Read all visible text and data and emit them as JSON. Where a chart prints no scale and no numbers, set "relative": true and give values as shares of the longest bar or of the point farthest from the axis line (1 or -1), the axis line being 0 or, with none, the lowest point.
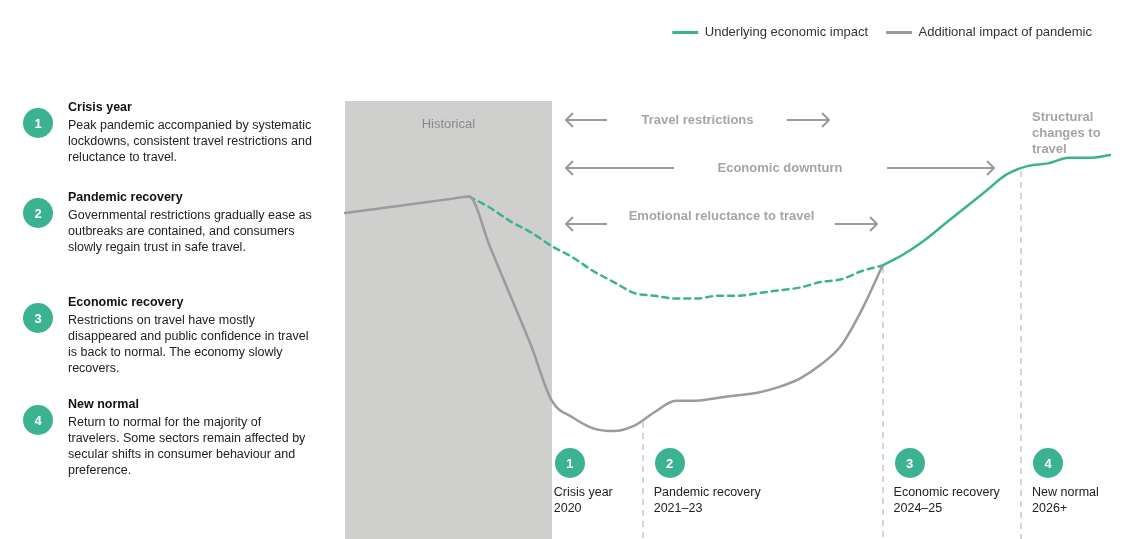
{
  "chart_data": {
    "type": "line",
    "relative": true,
    "legend": "top right",
    "marker": "none",
    "grid": false,
    "categories": [
      null,
      null,
      null,
      null,
      null,
      null,
      null,
      null,
      null,
      null,
      null,
      null,
      null,
      null,
      null,
      null,
      null,
      null,
      null,
      null,
      null,
      null,
      null,
      null,
      null,
      null,
      null,
      null,
      null,
      null,
      null,
      null,
      null,
      null,
      null,
      null,
      null,
      null
    ],
    "series": [
      {
        "name": "Underlying economic impact",
        "color": "#3bb291",
        "values": [
          null,
          null,
          null,
          null,
          null,
          null,
          null,
          null,
          null,
          null,
          null,
          null,
          null,
          null,
          null,
          null,
          null,
          null,
          null,
          null,
          null,
          null,
          null,
          null,
          null,
          null,
          0.6,
          0.64,
          0.69,
          0.75,
          0.81,
          0.87,
          0.93,
          0.96,
          0.97,
          0.99,
          0.99,
          1
        ]
      },
      {
        "name": "Additional impact of pandemic",
        "color": "#9b9b9b",
        "values": [
          0.79,
          0.8,
          0.81,
          0.82,
          0.83,
          0.84,
          0.85,
          0.67,
          0.49,
          0.31,
          0.11,
          0.05,
          0.01,
          0,
          0.02,
          0.07,
          0.11,
          0.11,
          0.12,
          0.13,
          0.14,
          0.16,
          0.19,
          0.24,
          0.31,
          0.44,
          0.6,
          null,
          null,
          null,
          null,
          null,
          null,
          null,
          null,
          null,
          null,
          null
        ]
      },
      {
        "color": "#3bb291",
        "line_style": "dashed",
        "values": [
          null,
          null,
          null,
          null,
          null,
          null,
          0.85,
          0.81,
          0.76,
          0.72,
          0.67,
          0.63,
          0.58,
          0.54,
          0.5,
          0.49,
          0.48,
          0.48,
          0.49,
          0.49,
          0.5,
          0.51,
          0.52,
          0.54,
          0.55,
          0.58,
          0.6,
          null,
          null,
          null,
          null,
          null,
          null,
          null,
          null,
          null,
          null,
          null
        ]
      }
    ],
    "annotations": [
      "Travel restrictions",
      "Economic downturn",
      "Emotional reluctance to travel",
      "Structural changes to travel",
      "1",
      "Crisis year",
      "Peak pandemic accompanied by systematic lockdowns, consistent travel restrictions and reluctance to travel.",
      "2",
      "Pandemic recovery",
      "Governmental restrictions gradually ease as outbreaks are contained, and consumers slowly regain trust in safe travel.",
      "3",
      "Economic recovery",
      "Restrictions on travel have mostly disappeared and public confidence in travel is back to normal. The economy slowly recovers.",
      "4",
      "New normal",
      "Return to normal for the majority of travelers. Some sectors remain affected by secular shifts in consumer behaviour and preference.",
      "1",
      "Crisis year\n2020",
      "2",
      "Pandemic recovery\n2021–23",
      "3",
      "Economic recovery\n2024–25",
      "4",
      "New normal\n2026+",
      "Historical"
    ]
  }
}
